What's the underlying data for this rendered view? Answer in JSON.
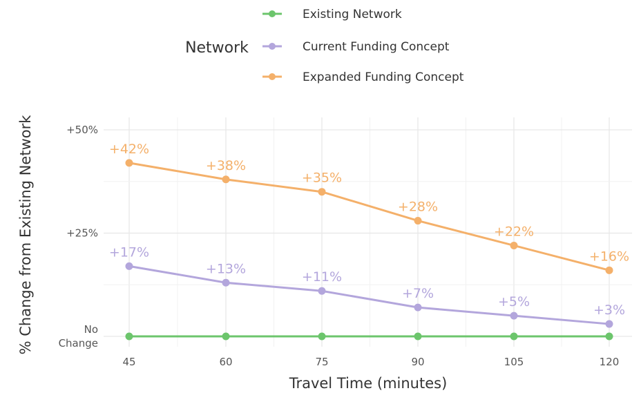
{
  "chart_data": {
    "type": "line",
    "title": "",
    "xlabel": "Travel Time (minutes)",
    "ylabel": "% Change from Existing Network",
    "x": [
      45,
      60,
      75,
      90,
      105,
      120
    ],
    "xticks": [
      "45",
      "60",
      "75",
      "90",
      "105",
      "120"
    ],
    "xlim": [
      45,
      120
    ],
    "ylim": [
      0,
      50
    ],
    "yticks": [
      {
        "value": 0,
        "label": [
          "No",
          "Change"
        ]
      },
      {
        "value": 25,
        "label": [
          "+25%"
        ]
      },
      {
        "value": 50,
        "label": [
          "+50%"
        ]
      }
    ],
    "grid": true,
    "legend": {
      "title": "Network",
      "placement": "top"
    },
    "series": [
      {
        "name": "Existing Network",
        "color": "#6cc56c",
        "values": [
          0,
          0,
          0,
          0,
          0,
          0
        ],
        "labels": [
          "",
          "",
          "",
          "",
          "",
          ""
        ]
      },
      {
        "name": "Current Funding Concept",
        "color": "#b3a6dc",
        "values": [
          17,
          13,
          11,
          7,
          5,
          3
        ],
        "labels": [
          "+17%",
          "+13%",
          "+11%",
          "+7%",
          "+5%",
          "+3%"
        ]
      },
      {
        "name": "Expanded Funding Concept",
        "color": "#f4b06a",
        "values": [
          42,
          38,
          35,
          28,
          22,
          16
        ],
        "labels": [
          "+42%",
          "+38%",
          "+35%",
          "+28%",
          "+22%",
          "+16%"
        ]
      }
    ]
  }
}
